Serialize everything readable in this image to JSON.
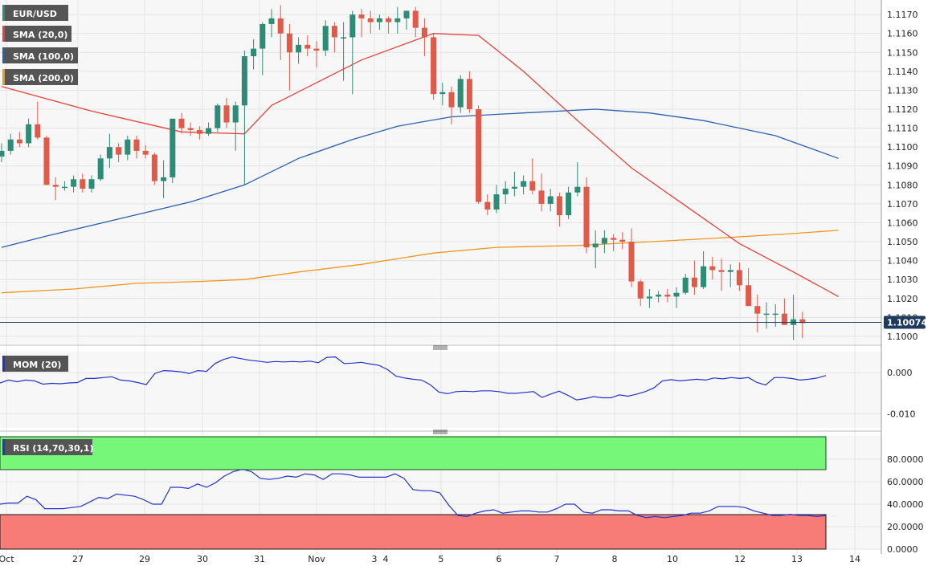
{
  "chart_data": [
    {
      "type": "candlestick",
      "symbol": "EUR/USD",
      "legend": [
        "EUR/USD",
        "SMA (20,0)",
        "SMA (100,0)",
        "SMA (200,0)"
      ],
      "legend_colors": [
        "#2e8b75",
        "#e8403a",
        "#2a5fb0",
        "#f0961e"
      ],
      "y_ticks": [
        "1.1000",
        "1.1010",
        "1.1020",
        "1.1030",
        "1.1040",
        "1.1050",
        "1.1060",
        "1.1070",
        "1.1080",
        "1.1090",
        "1.1100",
        "1.1110",
        "1.1120",
        "1.1130",
        "1.1140",
        "1.1150",
        "1.1160",
        "1.1170"
      ],
      "ylim": [
        1.0997,
        1.1176
      ],
      "last_price": "1.10074",
      "up_color": "#2e8b75",
      "down_color": "#e05a4a",
      "candles": [
        [
          1.1095,
          1.1102,
          1.1092,
          1.1098
        ],
        [
          1.1098,
          1.1107,
          1.1096,
          1.1104
        ],
        [
          1.1104,
          1.1108,
          1.11,
          1.1102
        ],
        [
          1.1102,
          1.1115,
          1.11,
          1.1112
        ],
        [
          1.1112,
          1.1124,
          1.1104,
          1.1105
        ],
        [
          1.1105,
          1.1106,
          1.108,
          1.108
        ],
        [
          1.108,
          1.1084,
          1.1072,
          1.1079
        ],
        [
          1.1079,
          1.1082,
          1.1077,
          1.1079
        ],
        [
          1.1079,
          1.1085,
          1.1076,
          1.1083
        ],
        [
          1.1083,
          1.1086,
          1.1076,
          1.1078
        ],
        [
          1.1078,
          1.1085,
          1.1076,
          1.1083
        ],
        [
          1.1083,
          1.1096,
          1.1082,
          1.1094
        ],
        [
          1.1094,
          1.1107,
          1.1089,
          1.11
        ],
        [
          1.11,
          1.1102,
          1.1092,
          1.1096
        ],
        [
          1.1096,
          1.1106,
          1.1093,
          1.1104
        ],
        [
          1.1104,
          1.1106,
          1.1094,
          1.1098
        ],
        [
          1.1098,
          1.1101,
          1.1094,
          1.1096
        ],
        [
          1.1096,
          1.1097,
          1.108,
          1.1082
        ],
        [
          1.1082,
          1.1093,
          1.1073,
          1.1084
        ],
        [
          1.1084,
          1.1115,
          1.1081,
          1.1115
        ],
        [
          1.1115,
          1.1118,
          1.1107,
          1.111
        ],
        [
          1.111,
          1.1113,
          1.1106,
          1.1109
        ],
        [
          1.1109,
          1.1111,
          1.1104,
          1.1107
        ],
        [
          1.1107,
          1.1113,
          1.1106,
          1.111
        ],
        [
          1.111,
          1.1123,
          1.1108,
          1.1122
        ],
        [
          1.1122,
          1.1126,
          1.111,
          1.1113
        ],
        [
          1.1113,
          1.1124,
          1.1098,
          1.1122
        ],
        [
          1.1122,
          1.1151,
          1.108,
          1.1148
        ],
        [
          1.1148,
          1.1157,
          1.1141,
          1.1152
        ],
        [
          1.1152,
          1.1166,
          1.1138,
          1.1165
        ],
        [
          1.1165,
          1.1173,
          1.1158,
          1.1168
        ],
        [
          1.1168,
          1.1175,
          1.1146,
          1.116
        ],
        [
          1.116,
          1.1165,
          1.113,
          1.115
        ],
        [
          1.115,
          1.1158,
          1.1144,
          1.1154
        ],
        [
          1.1154,
          1.1159,
          1.1148,
          1.1152
        ],
        [
          1.1152,
          1.1156,
          1.1142,
          1.1151
        ],
        [
          1.1151,
          1.1167,
          1.1148,
          1.1164
        ],
        [
          1.1164,
          1.1166,
          1.115,
          1.1158
        ],
        [
          1.1158,
          1.1166,
          1.1135,
          1.1158
        ],
        [
          1.1158,
          1.1172,
          1.1128,
          1.117
        ],
        [
          1.117,
          1.1173,
          1.1158,
          1.1168
        ],
        [
          1.1168,
          1.1172,
          1.116,
          1.1166
        ],
        [
          1.1166,
          1.117,
          1.1162,
          1.1168
        ],
        [
          1.1168,
          1.1169,
          1.116,
          1.1166
        ],
        [
          1.1166,
          1.1174,
          1.116,
          1.1168
        ],
        [
          1.1168,
          1.1172,
          1.1162,
          1.1172
        ],
        [
          1.1172,
          1.1174,
          1.1158,
          1.1163
        ],
        [
          1.1163,
          1.1168,
          1.1148,
          1.1158
        ],
        [
          1.1158,
          1.116,
          1.1125,
          1.1128
        ],
        [
          1.1128,
          1.1134,
          1.1122,
          1.1129
        ],
        [
          1.1129,
          1.1132,
          1.1112,
          1.1121
        ],
        [
          1.1121,
          1.1138,
          1.1118,
          1.1136
        ],
        [
          1.1136,
          1.114,
          1.1118,
          1.112
        ],
        [
          1.112,
          1.1122,
          1.107,
          1.1071
        ],
        [
          1.1071,
          1.1075,
          1.1064,
          1.1067
        ],
        [
          1.1067,
          1.108,
          1.1065,
          1.1075
        ],
        [
          1.1075,
          1.1082,
          1.107,
          1.1078
        ],
        [
          1.1078,
          1.1087,
          1.1074,
          1.1079
        ],
        [
          1.1079,
          1.1085,
          1.1075,
          1.1082
        ],
        [
          1.1082,
          1.1094,
          1.1075,
          1.1077
        ],
        [
          1.1077,
          1.1086,
          1.1066,
          1.107
        ],
        [
          1.107,
          1.1078,
          1.1066,
          1.1074
        ],
        [
          1.1074,
          1.1076,
          1.1058,
          1.1064
        ],
        [
          1.1064,
          1.1079,
          1.1062,
          1.1076
        ],
        [
          1.1076,
          1.1092,
          1.1074,
          1.1079
        ],
        [
          1.1079,
          1.1084,
          1.1044,
          1.1047
        ],
        [
          1.1047,
          1.1056,
          1.1036,
          1.1049
        ],
        [
          1.1049,
          1.1056,
          1.1044,
          1.1052
        ],
        [
          1.1052,
          1.1054,
          1.1045,
          1.1051
        ],
        [
          1.1051,
          1.1055,
          1.1046,
          1.105
        ],
        [
          1.105,
          1.1057,
          1.1026,
          1.1029
        ],
        [
          1.1029,
          1.103,
          1.1016,
          1.102
        ],
        [
          1.102,
          1.1025,
          1.1015,
          1.1021
        ],
        [
          1.1021,
          1.1024,
          1.1018,
          1.1022
        ],
        [
          1.1022,
          1.1025,
          1.1018,
          1.1021
        ],
        [
          1.1021,
          1.1026,
          1.1015,
          1.1023
        ],
        [
          1.1023,
          1.1033,
          1.1022,
          1.1031
        ],
        [
          1.1031,
          1.104,
          1.1022,
          1.1026
        ],
        [
          1.1026,
          1.1045,
          1.1025,
          1.1037
        ],
        [
          1.1037,
          1.1042,
          1.103,
          1.1035
        ],
        [
          1.1035,
          1.1041,
          1.1024,
          1.1034
        ],
        [
          1.1034,
          1.1038,
          1.1026,
          1.1035
        ],
        [
          1.1035,
          1.1039,
          1.1024,
          1.1027
        ],
        [
          1.1027,
          1.1036,
          1.1016,
          1.1016
        ],
        [
          1.1016,
          1.1022,
          1.1002,
          1.1012
        ],
        [
          1.1012,
          1.1018,
          1.1004,
          1.1012
        ],
        [
          1.1012,
          1.1017,
          1.1005,
          1.1012
        ],
        [
          1.1012,
          1.102,
          1.1006,
          1.1006
        ],
        [
          1.1006,
          1.1022,
          1.0998,
          1.1009
        ],
        [
          1.1009,
          1.1013,
          1.0999,
          1.1007
        ]
      ],
      "sma20": [
        [
          0,
          1.1132
        ],
        [
          10,
          1.1119
        ],
        [
          20,
          1.1108
        ],
        [
          27,
          1.1107
        ],
        [
          30,
          1.1122
        ],
        [
          40,
          1.1146
        ],
        [
          48,
          1.116
        ],
        [
          53,
          1.1159
        ],
        [
          58,
          1.114
        ],
        [
          64,
          1.1114
        ],
        [
          70,
          1.1089
        ],
        [
          76,
          1.1069
        ],
        [
          82,
          1.1049
        ],
        [
          88,
          1.1034
        ],
        [
          93,
          1.1021
        ]
      ],
      "sma100": [
        [
          0,
          1.1047
        ],
        [
          5,
          1.1053
        ],
        [
          13,
          1.1062
        ],
        [
          21,
          1.1071
        ],
        [
          27,
          1.108
        ],
        [
          33,
          1.1094
        ],
        [
          39,
          1.1104
        ],
        [
          44,
          1.1111
        ],
        [
          50,
          1.1116
        ],
        [
          58,
          1.1118
        ],
        [
          66,
          1.112
        ],
        [
          72,
          1.1118
        ],
        [
          78,
          1.1114
        ],
        [
          86,
          1.1106
        ],
        [
          93,
          1.1094
        ]
      ],
      "sma200": [
        [
          0,
          1.1023
        ],
        [
          8,
          1.1025
        ],
        [
          15,
          1.1028
        ],
        [
          22,
          1.1029
        ],
        [
          27,
          1.103
        ],
        [
          33,
          1.1034
        ],
        [
          40,
          1.1038
        ],
        [
          48,
          1.1044
        ],
        [
          55,
          1.1047
        ],
        [
          64,
          1.1048
        ],
        [
          72,
          1.105
        ],
        [
          80,
          1.1052
        ],
        [
          87,
          1.1054
        ],
        [
          93,
          1.1056
        ]
      ]
    },
    {
      "type": "line",
      "name": "MOM (20)",
      "y_ticks": [
        "0.000",
        "-0.010"
      ],
      "ylim": [
        -0.0132,
        0.0047
      ],
      "color": "#2233cc",
      "values": [
        -0.0025,
        -0.0018,
        -0.0022,
        -0.0018,
        -0.002,
        -0.0028,
        -0.0026,
        -0.0027,
        -0.0025,
        -0.0024,
        -0.0014,
        -0.0014,
        -0.0012,
        -0.001,
        -0.0018,
        -0.002,
        -0.0024,
        -0.0029,
        -0.0002,
        0.0005,
        0.0004,
        0.0002,
        -0.0002,
        0.0005,
        0.0003,
        0.0022,
        0.0032,
        0.0038,
        0.0034,
        0.003,
        0.0028,
        0.0025,
        0.0027,
        0.0026,
        0.0027,
        0.0026,
        0.0028,
        0.0024,
        0.0037,
        0.0038,
        0.0022,
        0.0023,
        0.0025,
        0.0021,
        0.0018,
        0.0008,
        -0.0008,
        -0.0013,
        -0.0016,
        -0.0018,
        -0.0029,
        -0.0047,
        -0.0051,
        -0.0046,
        -0.0045,
        -0.0046,
        -0.0044,
        -0.0044,
        -0.0046,
        -0.005,
        -0.005,
        -0.0048,
        -0.0046,
        -0.006,
        -0.0052,
        -0.0045,
        -0.0055,
        -0.0066,
        -0.0063,
        -0.0058,
        -0.0061,
        -0.0061,
        -0.0054,
        -0.0057,
        -0.0052,
        -0.0046,
        -0.0037,
        -0.002,
        -0.0017,
        -0.002,
        -0.0018,
        -0.0016,
        -0.0018,
        -0.0013,
        -0.0015,
        -0.0012,
        -0.0014,
        -0.0012,
        -0.0024,
        -0.003,
        -0.0012,
        -0.0012,
        -0.0014,
        -0.0018,
        -0.0016,
        -0.0013,
        -0.0007
      ]
    },
    {
      "type": "line",
      "name": "RSI (14,70,30,1)",
      "y_ticks": [
        "80.0000",
        "60.0000",
        "40.0000",
        "20.0000",
        "0.0000"
      ],
      "ylim": [
        0,
        100
      ],
      "overbought": 70,
      "oversold": 30,
      "color": "#2233cc",
      "values": [
        40,
        41,
        41,
        47,
        44,
        36,
        36,
        36,
        37,
        38,
        42,
        46,
        45,
        49,
        48,
        47,
        44,
        40,
        40,
        55,
        55,
        54,
        58,
        55,
        59,
        65,
        69,
        71,
        69,
        63,
        62,
        63,
        65,
        64,
        67,
        66,
        62,
        67,
        67,
        66,
        64,
        64,
        64,
        64,
        67,
        63,
        53,
        52,
        52,
        50,
        39,
        30,
        29,
        32,
        34,
        35,
        32,
        33,
        34,
        34,
        33,
        33,
        36,
        40,
        40,
        33,
        32,
        35,
        35,
        34,
        34,
        30,
        28,
        29,
        28,
        29,
        30,
        32,
        32,
        34,
        38,
        38,
        38,
        37,
        34,
        32,
        30,
        30,
        31,
        30,
        30,
        29,
        30
      ]
    },
    {
      "type": "axis",
      "x_ticks": [
        "Oct",
        "27",
        "29",
        "30",
        "31",
        "Nov",
        "3",
        "4",
        "5",
        "6",
        "7",
        "8",
        "10",
        "12",
        "13",
        "14"
      ]
    }
  ]
}
